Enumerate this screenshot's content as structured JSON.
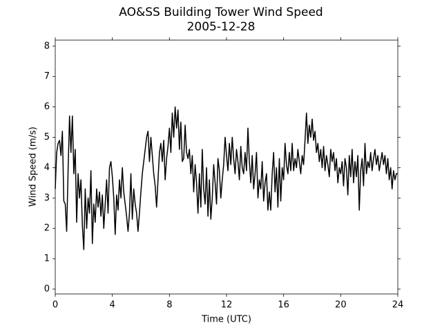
{
  "chart_data": {
    "type": "line",
    "title": "AO&SS Building Tower Wind Speed",
    "subtitle": "2005-12-28",
    "xlabel": "Time (UTC)",
    "ylabel": "Wind Speed (m/s)",
    "xlim": [
      0,
      24
    ],
    "xticks": [
      0,
      4,
      8,
      12,
      16,
      20,
      24
    ],
    "ylim": [
      -0.16,
      8.2
    ],
    "yticks": [
      0,
      1,
      2,
      3,
      4,
      5,
      6,
      7,
      8
    ],
    "grid": false,
    "x": [
      0,
      0.1,
      0.2,
      0.3,
      0.4,
      0.5,
      0.6,
      0.7,
      0.8,
      0.9,
      1,
      1.1,
      1.2,
      1.3,
      1.4,
      1.5,
      1.6,
      1.7,
      1.8,
      1.9,
      2,
      2.1,
      2.2,
      2.3,
      2.4,
      2.5,
      2.6,
      2.7,
      2.8,
      2.9,
      3,
      3.1,
      3.2,
      3.3,
      3.4,
      3.5,
      3.6,
      3.7,
      3.8,
      3.9,
      4,
      4.1,
      4.2,
      4.3,
      4.4,
      4.5,
      4.6,
      4.7,
      4.8,
      4.9,
      5,
      5.1,
      5.2,
      5.3,
      5.4,
      5.5,
      5.6,
      5.7,
      5.8,
      5.9,
      6,
      6.1,
      6.2,
      6.3,
      6.4,
      6.5,
      6.6,
      6.7,
      6.8,
      6.9,
      7,
      7.1,
      7.2,
      7.3,
      7.4,
      7.5,
      7.6,
      7.7,
      7.8,
      7.9,
      8,
      8.1,
      8.2,
      8.3,
      8.4,
      8.5,
      8.6,
      8.7,
      8.8,
      8.9,
      9,
      9.1,
      9.2,
      9.3,
      9.4,
      9.5,
      9.6,
      9.7,
      9.8,
      9.9,
      10,
      10.1,
      10.2,
      10.3,
      10.4,
      10.5,
      10.6,
      10.7,
      10.8,
      10.9,
      11,
      11.1,
      11.2,
      11.3,
      11.4,
      11.5,
      11.6,
      11.7,
      11.8,
      11.9,
      12,
      12.1,
      12.2,
      12.3,
      12.4,
      12.5,
      12.6,
      12.7,
      12.8,
      12.9,
      13,
      13.1,
      13.2,
      13.3,
      13.4,
      13.5,
      13.6,
      13.7,
      13.8,
      13.9,
      14,
      14.1,
      14.2,
      14.3,
      14.4,
      14.5,
      14.6,
      14.7,
      14.8,
      14.9,
      15,
      15.1,
      15.2,
      15.3,
      15.4,
      15.5,
      15.6,
      15.7,
      15.8,
      15.9,
      16,
      16.1,
      16.2,
      16.3,
      16.4,
      16.5,
      16.6,
      16.7,
      16.8,
      16.9,
      17,
      17.1,
      17.2,
      17.3,
      17.4,
      17.5,
      17.6,
      17.7,
      17.8,
      17.9,
      18,
      18.1,
      18.2,
      18.3,
      18.4,
      18.5,
      18.6,
      18.7,
      18.8,
      18.9,
      19,
      19.1,
      19.2,
      19.3,
      19.4,
      19.5,
      19.6,
      19.7,
      19.8,
      19.9,
      20,
      20.1,
      20.2,
      20.3,
      20.4,
      20.5,
      20.6,
      20.7,
      20.8,
      20.9,
      21,
      21.1,
      21.2,
      21.3,
      21.4,
      21.5,
      21.6,
      21.7,
      21.8,
      21.9,
      22,
      22.1,
      22.2,
      22.3,
      22.4,
      22.5,
      22.6,
      22.7,
      22.8,
      22.9,
      23,
      23.1,
      23.2,
      23.3,
      23.4,
      23.5,
      23.6,
      23.7,
      23.8,
      23.9,
      24
    ],
    "series": [
      {
        "color": "#000000",
        "values": [
          3.3,
          4.5,
          4.8,
          4.9,
          4.4,
          5.2,
          2.9,
          2.8,
          1.9,
          3.9,
          5.7,
          4.5,
          5.7,
          3.8,
          4.6,
          2.2,
          3.8,
          3.0,
          3.6,
          2.1,
          1.3,
          3.3,
          2.0,
          3.0,
          2.5,
          3.9,
          1.5,
          2.8,
          2.2,
          3.3,
          2.7,
          3.2,
          2.4,
          3.1,
          2.0,
          2.8,
          3.6,
          2.5,
          4.0,
          4.2,
          3.7,
          3.0,
          1.8,
          3.1,
          2.6,
          3.6,
          3.0,
          4.0,
          3.2,
          2.8,
          2.4,
          1.9,
          2.5,
          3.8,
          2.3,
          3.3,
          2.8,
          2.5,
          1.9,
          2.5,
          3.2,
          3.8,
          4.2,
          4.6,
          5.0,
          5.2,
          4.2,
          5.0,
          4.4,
          3.8,
          3.4,
          2.7,
          3.6,
          4.5,
          4.8,
          4.2,
          4.9,
          3.6,
          4.3,
          4.7,
          5.3,
          4.5,
          5.8,
          5.0,
          6.0,
          5.3,
          5.9,
          4.6,
          5.5,
          4.2,
          4.3,
          5.4,
          4.5,
          4.3,
          4.6,
          3.8,
          4.4,
          3.2,
          4.1,
          3.5,
          2.5,
          3.8,
          2.7,
          4.6,
          3.3,
          2.8,
          4.0,
          2.4,
          3.6,
          2.3,
          3.0,
          4.1,
          3.5,
          2.8,
          4.3,
          3.9,
          3.0,
          3.6,
          4.1,
          5.0,
          4.4,
          3.9,
          4.8,
          4.1,
          5.0,
          4.3,
          3.8,
          4.6,
          4.2,
          3.6,
          4.7,
          4.0,
          3.8,
          4.5,
          3.9,
          5.3,
          4.2,
          3.5,
          4.4,
          3.3,
          3.8,
          4.5,
          3.0,
          3.6,
          3.3,
          4.2,
          2.9,
          3.5,
          3.8,
          2.6,
          3.2,
          2.6,
          3.8,
          4.5,
          3.2,
          4.0,
          2.7,
          4.3,
          2.9,
          4.0,
          3.6,
          4.8,
          4.1,
          3.8,
          4.5,
          3.9,
          4.8,
          3.9,
          4.3,
          4.0,
          4.6,
          4.2,
          3.8,
          4.4,
          4.1,
          4.9,
          5.8,
          4.8,
          5.4,
          5.0,
          5.6,
          4.9,
          5.2,
          4.5,
          4.8,
          4.2,
          4.6,
          4.0,
          4.7,
          3.9,
          4.4,
          4.1,
          3.7,
          4.6,
          4.2,
          4.5,
          3.9,
          4.3,
          3.5,
          4.0,
          3.8,
          4.2,
          3.4,
          4.3,
          4.0,
          3.1,
          4.4,
          3.7,
          4.6,
          3.5,
          4.2,
          3.7,
          4.4,
          2.6,
          3.9,
          4.3,
          3.4,
          4.8,
          3.8,
          4.2,
          4.0,
          4.5,
          3.9,
          4.3,
          4.6,
          4.1,
          4.4,
          3.9,
          4.2,
          4.5,
          4.1,
          4.4,
          3.8,
          4.3,
          3.6,
          4.0,
          3.3,
          3.9,
          3.6,
          3.8,
          3.8
        ]
      }
    ]
  }
}
